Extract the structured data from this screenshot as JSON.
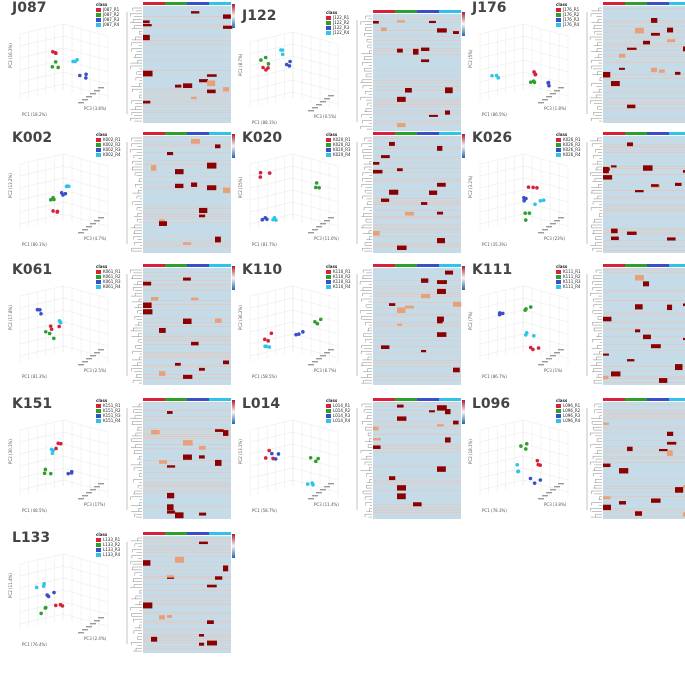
{
  "legend_title": "class",
  "colors": {
    "r1": "#d6213b",
    "r2": "#2ca02c",
    "r3": "#3a4fc7",
    "r4": "#2ec4e8",
    "heat_base": "#c6dbe8",
    "heat_dark": "#8b0000",
    "heat_mid": "#e8a07a"
  },
  "panels": [
    {
      "id": "J087",
      "title": "J087",
      "legend": [
        "J087_R1",
        "J087_R2",
        "J087_R3",
        "J087_R4"
      ],
      "axes": [
        "PC1 (18.2%)",
        "PC2 (16.3%)",
        "PC3 (3.8%)"
      ]
    },
    {
      "id": "J122",
      "title": "J122",
      "legend": [
        "J122_R1",
        "J122_R2",
        "J122_R3",
        "J122_R4"
      ],
      "axes": [
        "PC1 (88.1%)",
        "PC2 (8.7%)",
        "PC3 (0.5%)"
      ]
    },
    {
      "id": "J176",
      "title": "J176",
      "legend": [
        "J176_R1",
        "J176_R2",
        "J176_R3",
        "J176_R4"
      ],
      "axes": [
        "PC1 (86.5%)",
        "PC2 (5%)",
        "PC3 (1.8%)"
      ]
    },
    {
      "id": "K002",
      "title": "K002",
      "legend": [
        "K002_R1",
        "K002_R2",
        "K002_R3",
        "K002_R4"
      ],
      "axes": [
        "PC1 (80.1%)",
        "PC2 (13.2%)",
        "PC3 (4.7%)"
      ]
    },
    {
      "id": "K020",
      "title": "K020",
      "legend": [
        "K020_R1",
        "K020_R2",
        "K020_R3",
        "K020_R4"
      ],
      "axes": [
        "PC1 (81.7%)",
        "PC2 (15%)",
        "PC3 (11.6%)"
      ]
    },
    {
      "id": "K026",
      "title": "K026",
      "legend": [
        "K026_R1",
        "K026_R2",
        "K026_R3",
        "K026_R4"
      ],
      "axes": [
        "PC1 (35.3%)",
        "PC2 (3.2%)",
        "PC3 (23%)"
      ]
    },
    {
      "id": "K061",
      "title": "K061",
      "legend": [
        "K061_R1",
        "K061_R2",
        "K061_R3",
        "K061_R4"
      ],
      "axes": [
        "PC1 (81.3%)",
        "PC2 (17.8%)",
        "PC3 (2.5%)"
      ]
    },
    {
      "id": "K110",
      "title": "K110",
      "legend": [
        "K110_R1",
        "K110_R2",
        "K110_R3",
        "K110_R4"
      ],
      "axes": [
        "PC1 (58.5%)",
        "PC2 (36.2%)",
        "PC3 (6.7%)"
      ]
    },
    {
      "id": "K111",
      "title": "K111",
      "legend": [
        "K111_R1",
        "K111_R2",
        "K111_R3",
        "K111_R4"
      ],
      "axes": [
        "PC1 (86.7%)",
        "PC2 (7%)",
        "PC3 (1%)"
      ]
    },
    {
      "id": "K151",
      "title": "K151",
      "legend": [
        "K151_R1",
        "K151_R2",
        "K151_R3",
        "K151_R4"
      ],
      "axes": [
        "PC1 (48.5%)",
        "PC2 (30.1%)",
        "PC3 (17%)"
      ]
    },
    {
      "id": "L014",
      "title": "L014",
      "legend": [
        "L014_R1",
        "L014_R2",
        "L014_R3",
        "L014_R4"
      ],
      "axes": [
        "PC1 (58.7%)",
        "PC2 (13.1%)",
        "PC3 (11.4%)"
      ]
    },
    {
      "id": "L096",
      "title": "L096",
      "legend": [
        "L096_R1",
        "L096_R2",
        "L096_R3",
        "L096_R4"
      ],
      "axes": [
        "PC1 (78.3%)",
        "PC2 (18.1%)",
        "PC3 (3.8%)"
      ]
    },
    {
      "id": "L133",
      "title": "L133",
      "legend": [
        "L133_R1",
        "L133_R2",
        "L133_R3",
        "L133_R4"
      ],
      "axes": [
        "PC1 (76.4%)",
        "PC2 (11.4%)",
        "PC3 (2.4%)"
      ]
    }
  ]
}
